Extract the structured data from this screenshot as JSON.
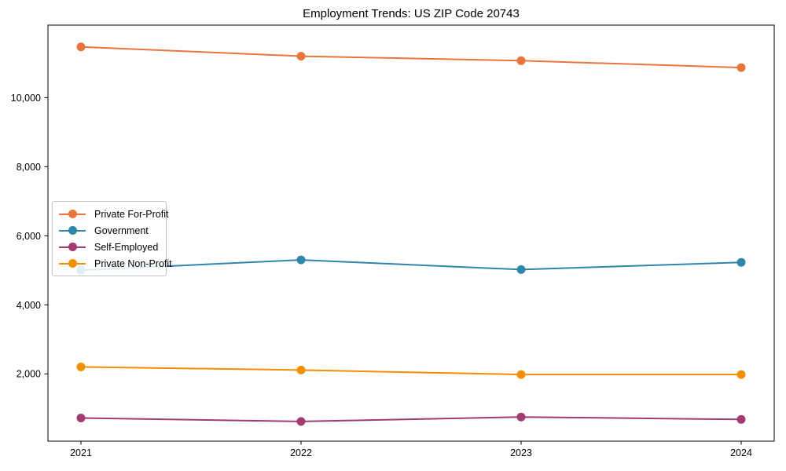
{
  "chart_data": {
    "type": "line",
    "title": "Employment Trends: US ZIP Code 20743",
    "x": [
      2021,
      2022,
      2023,
      2024
    ],
    "x_tick_labels": [
      "2021",
      "2022",
      "2023",
      "2024"
    ],
    "y_ticks": [
      2000,
      4000,
      6000,
      8000,
      10000
    ],
    "y_tick_labels": [
      "2,000",
      "4,000",
      "6,000",
      "8,000",
      "10,000"
    ],
    "xlim": [
      2020.85,
      2024.15
    ],
    "ylim": [
      50,
      12100
    ],
    "grid": false,
    "legend_position": "center-left",
    "xlabel": "",
    "ylabel": "",
    "series": [
      {
        "name": "Private For-Profit",
        "color": "#E8763C",
        "values": [
          11470,
          11200,
          11070,
          10870
        ]
      },
      {
        "name": "Government",
        "color": "#2E86AB",
        "values": [
          5000,
          5300,
          5020,
          5230
        ]
      },
      {
        "name": "Self-Employed",
        "color": "#A23B72",
        "values": [
          720,
          620,
          750,
          680
        ]
      },
      {
        "name": "Private Non-Profit",
        "color": "#F18F01",
        "values": [
          2200,
          2110,
          1980,
          1980
        ]
      }
    ]
  }
}
